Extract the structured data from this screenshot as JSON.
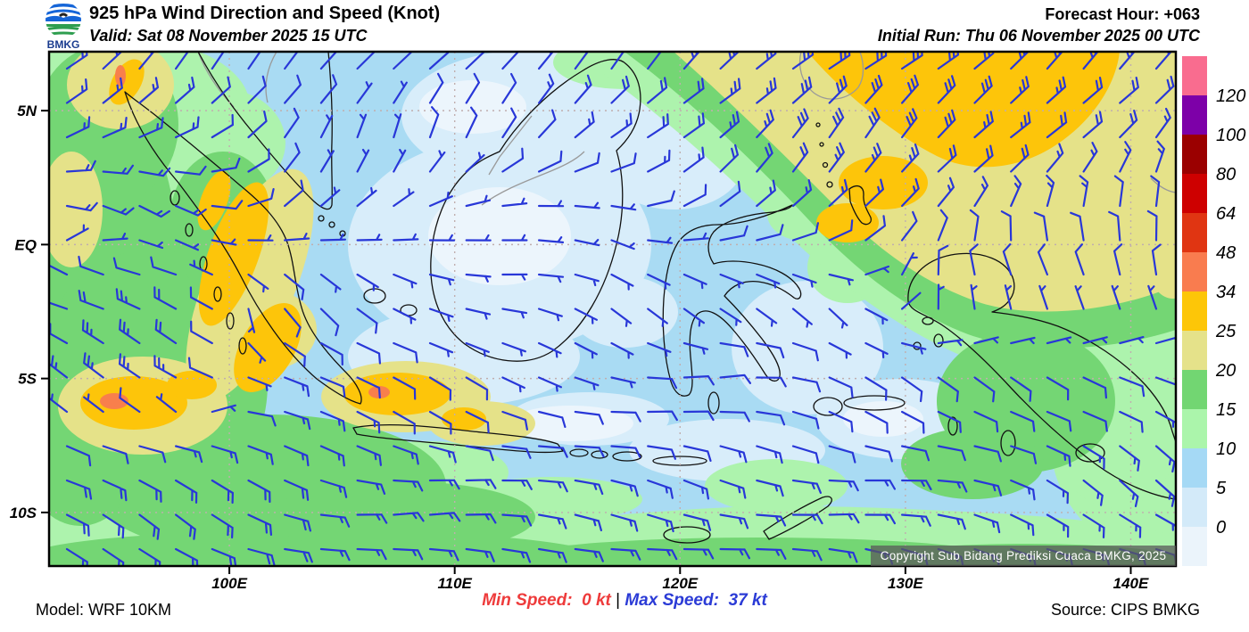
{
  "header": {
    "logo_text": "BMKG",
    "title": "925 hPa Wind Direction and Speed (Knot)",
    "valid": "Valid: Sat 08 November 2025 15 UTC",
    "forecast_hour": "Forecast Hour: +063",
    "initial_run": "Initial Run: Thu 06 November 2025 00 UTC"
  },
  "footer": {
    "model": "Model: WRF 10KM",
    "min_speed_label": "Min Speed:",
    "min_speed_value": "0 kt",
    "separator": "|",
    "max_speed_label": "Max Speed:",
    "max_speed_value": "37 kt",
    "source": "Source: CIPS BMKG"
  },
  "map": {
    "copyright": "Copyright Sub Bidang Prediksi Cuaca BMKG, 2025",
    "lat_ticks": [
      {
        "label": "5N",
        "lat": 5
      },
      {
        "label": "EQ",
        "lat": 0
      },
      {
        "label": "5S",
        "lat": -5
      },
      {
        "label": "10S",
        "lat": -10
      }
    ],
    "lon_ticks": [
      {
        "label": "100E",
        "lon": 100
      },
      {
        "label": "110E",
        "lon": 110
      },
      {
        "label": "120E",
        "lon": 120
      },
      {
        "label": "130E",
        "lon": 130
      },
      {
        "label": "140E",
        "lon": 140
      }
    ]
  },
  "colorbar": {
    "tick_labels": [
      "120",
      "100",
      "80",
      "64",
      "48",
      "34",
      "25",
      "20",
      "15",
      "10",
      "5",
      "0"
    ],
    "colors_top_to_bottom": [
      "#f96c8f",
      "#7d00a8",
      "#9b0000",
      "#ce0000",
      "#e03512",
      "#f97c4f",
      "#fdc608",
      "#e5e28a",
      "#72d672",
      "#abf5ab",
      "#a5d9f5",
      "#d3eaf9",
      "#ebf4fb"
    ]
  },
  "chart_data": {
    "type": "heatmap",
    "subtype": "wind-barb-map",
    "title": "925 hPa Wind Direction and Speed (Knot)",
    "valid_time": "Sat 08 November 2025 15 UTC",
    "initial_run": "Thu 06 November 2025 00 UTC",
    "forecast_hour": "+063",
    "model": "WRF 10KM",
    "source": "CIPS BMKG",
    "min_speed_kt": 0,
    "max_speed_kt": 37,
    "lon_range": [
      92,
      142
    ],
    "lat_range": [
      -12,
      7.2
    ],
    "x_ticks": [
      "100E",
      "110E",
      "120E",
      "130E",
      "140E"
    ],
    "y_ticks": [
      "5N",
      "EQ",
      "5S",
      "10S"
    ],
    "speed_levels_kt": [
      0,
      5,
      10,
      15,
      20,
      25,
      34,
      48,
      64,
      80,
      100,
      120
    ],
    "level_colors": [
      "#ebf4fb",
      "#d3eaf9",
      "#a5d9f5",
      "#abf5ab",
      "#72d672",
      "#e5e28a",
      "#fdc608",
      "#f97c4f",
      "#e03512",
      "#ce0000",
      "#9b0000",
      "#7d00a8",
      "#f96c8f"
    ],
    "barb_color": "#2837d8",
    "wind_grid": {
      "lons": [
        92,
        97,
        102,
        107,
        112,
        117,
        122,
        127,
        132,
        137,
        142
      ],
      "lats": [
        7,
        4,
        1,
        -2,
        -5,
        -8,
        -11
      ],
      "dir_from_deg": [
        [
          55,
          50,
          40,
          35,
          40,
          45,
          50,
          50,
          55,
          45,
          40
        ],
        [
          65,
          55,
          35,
          30,
          35,
          40,
          45,
          50,
          50,
          35,
          25
        ],
        [
          90,
          120,
          60,
          60,
          90,
          120,
          60,
          40,
          30,
          15,
          5
        ],
        [
          305,
          295,
          130,
          120,
          110,
          130,
          120,
          140,
          350,
          330,
          335
        ],
        [
          295,
          305,
          125,
          115,
          100,
          105,
          100,
          115,
          110,
          120,
          125
        ],
        [
          115,
          115,
          110,
          105,
          100,
          95,
          100,
          105,
          110,
          115,
          120
        ],
        [
          115,
          110,
          105,
          100,
          95,
          90,
          95,
          100,
          105,
          110,
          115
        ]
      ],
      "speed_kt": [
        [
          14,
          16,
          10,
          8,
          12,
          20,
          26,
          30,
          32,
          26,
          22
        ],
        [
          15,
          14,
          8,
          6,
          10,
          16,
          24,
          30,
          28,
          20,
          16
        ],
        [
          12,
          18,
          8,
          5,
          6,
          7,
          10,
          15,
          14,
          12,
          11
        ],
        [
          20,
          24,
          10,
          6,
          5,
          5,
          7,
          7,
          8,
          10,
          10
        ],
        [
          22,
          28,
          14,
          10,
          7,
          7,
          9,
          8,
          8,
          10,
          12
        ],
        [
          18,
          20,
          18,
          14,
          12,
          12,
          14,
          12,
          12,
          14,
          15
        ],
        [
          18,
          20,
          18,
          16,
          15,
          15,
          16,
          15,
          14,
          15,
          16
        ]
      ]
    }
  }
}
